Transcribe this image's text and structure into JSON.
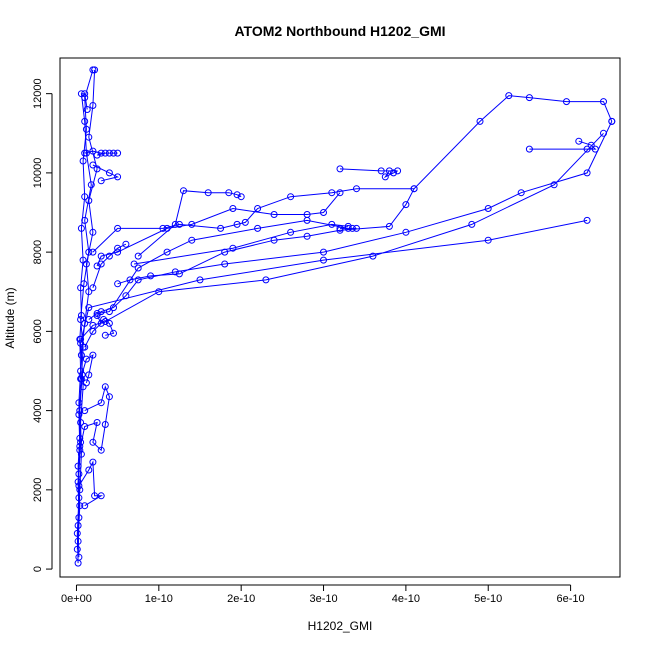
{
  "chart_data": {
    "type": "line",
    "title": "ATOM2 Northbound H1202_GMI",
    "xlabel": "H1202_GMI",
    "ylabel": "Altitude (m)",
    "xlim": [
      -2e-11,
      6.6e-10
    ],
    "ylim": [
      -200,
      12900
    ],
    "x_ticks": [
      0,
      1e-10,
      2e-10,
      3e-10,
      4e-10,
      5e-10,
      6e-10
    ],
    "x_tick_labels": [
      "0e+00",
      "1e-10",
      "2e-10",
      "3e-10",
      "4e-10",
      "5e-10",
      "6e-10"
    ],
    "y_ticks": [
      0,
      2000,
      4000,
      6000,
      8000,
      10000,
      12000
    ],
    "y_tick_labels": [
      "0",
      "2000",
      "4000",
      "6000",
      "8000",
      "10000",
      "12000"
    ],
    "grid": false,
    "legend": "none",
    "color": "#0000ff",
    "marker": "open-circle",
    "series": [
      {
        "points": [
          [
            2e-12,
            150
          ],
          [
            1e-12,
            900
          ],
          [
            3e-12,
            1800
          ],
          [
            2e-12,
            2600
          ],
          [
            4e-12,
            3300
          ],
          [
            3e-12,
            4200
          ],
          [
            5e-12,
            5000
          ],
          [
            4e-12,
            5800
          ],
          [
            6e-12,
            6400
          ],
          [
            5e-12,
            7100
          ],
          [
            8e-12,
            7800
          ],
          [
            6e-12,
            8600
          ],
          [
            1e-11,
            9400
          ],
          [
            8e-12,
            10300
          ],
          [
            1.2e-11,
            11100
          ],
          [
            1e-11,
            11900
          ],
          [
            2e-11,
            12600
          ]
        ]
      },
      {
        "points": [
          [
            3e-12,
            300
          ],
          [
            2e-12,
            1100
          ],
          [
            4e-12,
            2000
          ],
          [
            6e-12,
            2900
          ],
          [
            5e-12,
            3700
          ],
          [
            8e-12,
            4600
          ],
          [
            6e-12,
            5400
          ],
          [
            1e-11,
            6200
          ],
          [
            1.5e-11,
            7000
          ],
          [
            1.2e-11,
            7700
          ],
          [
            2e-11,
            8500
          ],
          [
            1.5e-11,
            9300
          ],
          [
            2.5e-11,
            10100
          ],
          [
            1.5e-11,
            10900
          ],
          [
            2e-11,
            11700
          ],
          [
            2.2e-11,
            12600
          ]
        ]
      },
      {
        "points": [
          [
            1e-12,
            500
          ],
          [
            3e-12,
            1300
          ],
          [
            2e-12,
            2200
          ],
          [
            4e-12,
            3100
          ],
          [
            3e-12,
            3900
          ],
          [
            6e-12,
            4800
          ],
          [
            8e-12,
            5600
          ],
          [
            5e-12,
            6300
          ],
          [
            9e-12,
            7200
          ],
          [
            1.5e-11,
            8000
          ],
          [
            1e-11,
            8800
          ],
          [
            1.8e-11,
            9700
          ],
          [
            1.2e-11,
            10500
          ],
          [
            1e-11,
            11300
          ],
          [
            6e-12,
            12000
          ],
          [
            1e-11,
            12000
          ],
          [
            1.3e-11,
            11600
          ]
        ]
      },
      {
        "points": [
          [
            2e-12,
            700
          ],
          [
            4e-12,
            1600
          ],
          [
            3e-12,
            2400
          ],
          [
            5e-12,
            3200
          ],
          [
            4e-12,
            4000
          ],
          [
            7e-12,
            4900
          ],
          [
            5e-12,
            5700
          ],
          [
            1.5e-11,
            6600
          ],
          [
            1.5e-10,
            7300
          ],
          [
            3e-10,
            7800
          ],
          [
            5e-10,
            8300
          ],
          [
            6.2e-10,
            8800
          ]
        ]
      },
      {
        "points": [
          [
            3e-12,
            2100
          ],
          [
            1.5e-11,
            2500
          ],
          [
            2e-11,
            2700
          ],
          [
            2.2e-11,
            1850
          ],
          [
            3e-11,
            1850
          ],
          [
            1e-11,
            1600
          ]
        ]
      },
      {
        "points": [
          [
            4e-12,
            3000
          ],
          [
            1e-11,
            3600
          ],
          [
            2.5e-11,
            3700
          ],
          [
            2e-11,
            3200
          ],
          [
            3e-11,
            3000
          ],
          [
            3.5e-11,
            3650
          ],
          [
            4e-11,
            4350
          ],
          [
            3.5e-11,
            4600
          ],
          [
            3e-11,
            4200
          ],
          [
            1e-11,
            4000
          ]
        ]
      },
      {
        "points": [
          [
            5e-12,
            4800
          ],
          [
            1.2e-11,
            5300
          ],
          [
            2e-11,
            5400
          ],
          [
            1.5e-11,
            4900
          ],
          [
            1.2e-11,
            4700
          ]
        ]
      },
      {
        "points": [
          [
            1e-11,
            5600
          ],
          [
            2e-11,
            6000
          ],
          [
            3e-11,
            6200
          ],
          [
            2.5e-11,
            6400
          ],
          [
            3e-11,
            6500
          ],
          [
            4.5e-11,
            6600
          ],
          [
            6e-11,
            6900
          ],
          [
            7.5e-11,
            7300
          ],
          [
            1.2e-10,
            7500
          ],
          [
            1.8e-10,
            7700
          ],
          [
            3e-10,
            8000
          ],
          [
            4e-10,
            8500
          ],
          [
            5e-10,
            9100
          ],
          [
            5.4e-10,
            9500
          ],
          [
            6.2e-10,
            10000
          ],
          [
            6.5e-10,
            11300
          ]
        ]
      },
      {
        "points": [
          [
            5e-12,
            5800
          ],
          [
            2e-11,
            6150
          ],
          [
            3.5e-11,
            6250
          ],
          [
            1e-10,
            7000
          ],
          [
            2.3e-10,
            7300
          ],
          [
            3.6e-10,
            7900
          ],
          [
            4.8e-10,
            8700
          ],
          [
            5.8e-10,
            9700
          ],
          [
            6.4e-10,
            11000
          ]
        ]
      },
      {
        "points": [
          [
            1.5e-11,
            6300
          ],
          [
            2.5e-11,
            6450
          ],
          [
            4e-11,
            6500
          ],
          [
            7.5e-11,
            7600
          ],
          [
            1.1e-10,
            8000
          ],
          [
            1.4e-10,
            8300
          ],
          [
            2.2e-10,
            8600
          ],
          [
            2.8e-10,
            8800
          ],
          [
            3.3e-10,
            8600
          ],
          [
            3.4e-10,
            8600
          ],
          [
            3.35e-10,
            8600
          ],
          [
            3.2e-10,
            8600
          ]
        ]
      },
      {
        "points": [
          [
            3.5e-11,
            5900
          ],
          [
            4.5e-11,
            5950
          ],
          [
            4e-11,
            6200
          ],
          [
            3.3e-11,
            6300
          ]
        ]
      },
      {
        "points": [
          [
            2e-11,
            7100
          ],
          [
            3e-11,
            7700
          ],
          [
            4e-11,
            7900
          ],
          [
            5e-11,
            8100
          ],
          [
            6e-11,
            8200
          ]
        ]
      },
      {
        "points": [
          [
            5e-11,
            7200
          ],
          [
            6.5e-11,
            7300
          ],
          [
            9e-11,
            7400
          ],
          [
            1.25e-10,
            7450
          ],
          [
            1.8e-10,
            8000
          ],
          [
            2.4e-10,
            8300
          ],
          [
            2.8e-10,
            8400
          ],
          [
            3.2e-10,
            8550
          ],
          [
            3.8e-10,
            8650
          ],
          [
            4e-10,
            9200
          ],
          [
            4.1e-10,
            9600
          ]
        ]
      },
      {
        "points": [
          [
            2.5e-11,
            7650
          ],
          [
            3e-11,
            7900
          ],
          [
            5e-11,
            8000
          ],
          [
            1.1e-10,
            8600
          ],
          [
            1.4e-10,
            8700
          ],
          [
            1.9e-10,
            9100
          ],
          [
            2.4e-10,
            8950
          ],
          [
            2.8e-10,
            8950
          ],
          [
            3e-10,
            9000
          ],
          [
            3.2e-10,
            9500
          ]
        ]
      },
      {
        "points": [
          [
            2e-11,
            8000
          ],
          [
            5e-11,
            8600
          ],
          [
            1.05e-10,
            8600
          ],
          [
            1.25e-10,
            8700
          ],
          [
            1.75e-10,
            8600
          ],
          [
            1.95e-10,
            8700
          ],
          [
            2.05e-10,
            8750
          ],
          [
            2.2e-10,
            9100
          ],
          [
            2.6e-10,
            9400
          ],
          [
            3.1e-10,
            9500
          ],
          [
            3.4e-10,
            9600
          ],
          [
            4.1e-10,
            9600
          ],
          [
            4.9e-10,
            11300
          ],
          [
            5.25e-10,
            11950
          ],
          [
            5.5e-10,
            11900
          ],
          [
            5.95e-10,
            11800
          ],
          [
            6.4e-10,
            11800
          ],
          [
            6.5e-10,
            11300
          ]
        ]
      },
      {
        "points": [
          [
            7.5e-11,
            7900
          ],
          [
            1.2e-10,
            8700
          ],
          [
            1.3e-10,
            9550
          ],
          [
            1.6e-10,
            9500
          ],
          [
            1.85e-10,
            9500
          ],
          [
            1.95e-10,
            9450
          ],
          [
            2e-10,
            9400
          ]
        ]
      },
      {
        "points": [
          [
            7e-11,
            7700
          ],
          [
            1.9e-10,
            8100
          ],
          [
            2.6e-10,
            8500
          ],
          [
            3.1e-10,
            8700
          ],
          [
            3.3e-10,
            8650
          ]
        ]
      },
      {
        "points": [
          [
            3.2e-10,
            10100
          ],
          [
            3.7e-10,
            10050
          ],
          [
            3.9e-10,
            10050
          ],
          [
            3.85e-10,
            10000
          ],
          [
            3.75e-10,
            9900
          ],
          [
            3.8e-10,
            10050
          ]
        ]
      },
      {
        "points": [
          [
            5.5e-10,
            10600
          ],
          [
            6.2e-10,
            10600
          ],
          [
            6.3e-10,
            10600
          ],
          [
            6.25e-10,
            10700
          ],
          [
            6.1e-10,
            10800
          ]
        ]
      },
      {
        "points": [
          [
            1e-11,
            10500
          ],
          [
            2e-11,
            10550
          ],
          [
            3e-11,
            10500
          ],
          [
            4e-11,
            10500
          ],
          [
            4.5e-11,
            10500
          ],
          [
            5e-11,
            10500
          ],
          [
            3.5e-11,
            10500
          ],
          [
            2.5e-11,
            10450
          ]
        ]
      },
      {
        "points": [
          [
            2e-11,
            10200
          ],
          [
            4e-11,
            10000
          ],
          [
            5e-11,
            9900
          ],
          [
            3e-11,
            9800
          ]
        ]
      }
    ]
  }
}
